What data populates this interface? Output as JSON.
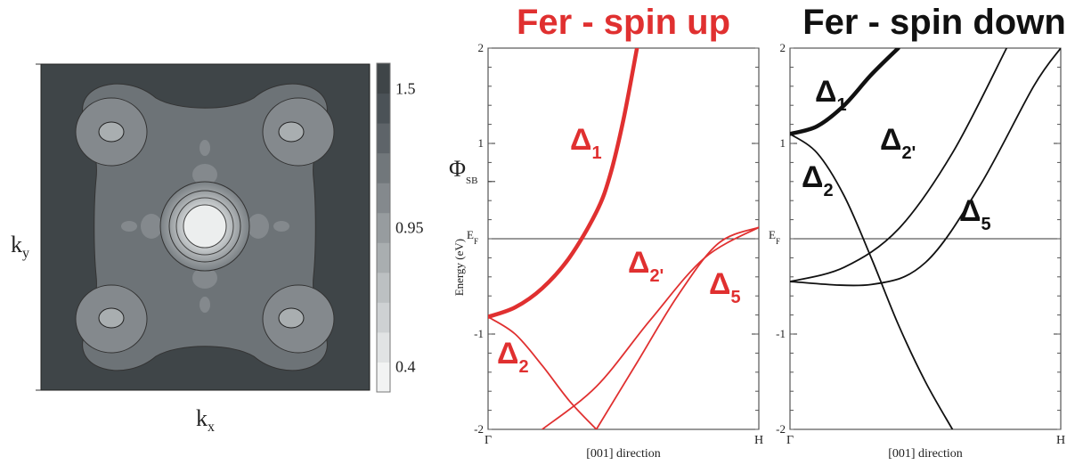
{
  "colors": {
    "spin_up": "#e03030",
    "spin_down": "#111111",
    "map_dark": "#3f4548",
    "axis": "#333333"
  },
  "chart_data": [
    {
      "type": "heatmap",
      "title": "",
      "xlabel": "k",
      "xlabel_sub": "x",
      "ylabel": "k",
      "ylabel_sub": "y",
      "colorbar": {
        "ticks": [
          "1.5",
          "0.95",
          "0.4"
        ],
        "tick_values": [
          1.5,
          0.95,
          0.4
        ],
        "range": [
          0.3,
          1.6
        ],
        "levels": 10,
        "colors": [
          "#f2f3f3",
          "#e1e3e4",
          "#ced1d3",
          "#bcc0c2",
          "#a9aeb0",
          "#979c9f",
          "#84898d",
          "#71777b",
          "#5e6469",
          "#4b5257",
          "#3f4548"
        ]
      },
      "features": [
        {
          "name": "center-peak",
          "x": 0,
          "y": 0
        },
        {
          "name": "corner-minima",
          "points": [
            [
              -0.7,
              0.7
            ],
            [
              0.7,
              0.7
            ],
            [
              -0.7,
              -0.7
            ],
            [
              0.7,
              -0.7
            ]
          ]
        }
      ]
    },
    {
      "type": "line",
      "title": "Fer - spin up",
      "xlabel": "[001] direction",
      "ylabel": "Energy (eV)",
      "x_ticks": [
        "Γ",
        "H"
      ],
      "ylim": [
        -2,
        2
      ],
      "y_ticks": [
        "2",
        "1",
        "-1",
        "-2"
      ],
      "y_tick_values": [
        2,
        1,
        -1,
        -2
      ],
      "reference_lines": [
        {
          "label": "E",
          "sub": "F",
          "y": 0
        }
      ],
      "extra_tick": {
        "label": "Φ",
        "sub": "SB",
        "y": 0.6
      },
      "series": [
        {
          "name": "Δ",
          "sub": "1",
          "bold": true,
          "x": [
            0,
            0.1,
            0.2,
            0.3,
            0.4,
            0.45,
            0.5,
            0.55
          ],
          "y": [
            -0.82,
            -0.72,
            -0.52,
            -0.2,
            0.28,
            0.66,
            1.25,
            2.0
          ]
        },
        {
          "name": "Δ",
          "sub": "2",
          "bold": false,
          "x": [
            0,
            0.1,
            0.2,
            0.3,
            0.4
          ],
          "y": [
            -0.82,
            -1.0,
            -1.33,
            -1.7,
            -2.0
          ]
        },
        {
          "name": "Δ",
          "sub": "2'",
          "bold": false,
          "x": [
            0.2,
            0.4,
            0.6,
            0.8,
            1.0
          ],
          "y": [
            -2.0,
            -1.55,
            -0.85,
            -0.2,
            0.12
          ]
        },
        {
          "name": "Δ",
          "sub": "5",
          "bold": false,
          "x": [
            0.4,
            0.55,
            0.7,
            0.85,
            1.0
          ],
          "y": [
            -2.0,
            -1.3,
            -0.6,
            -0.05,
            0.12
          ]
        }
      ]
    },
    {
      "type": "line",
      "title": "Fer - spin down",
      "xlabel": "[001] direction",
      "ylabel": "",
      "x_ticks": [
        "Γ",
        "H"
      ],
      "ylim": [
        -2,
        2
      ],
      "y_ticks": [
        "2",
        "1",
        "-1",
        "-2"
      ],
      "y_tick_values": [
        2,
        1,
        -1,
        -2
      ],
      "reference_lines": [
        {
          "label": "E",
          "sub": "F",
          "y": 0
        }
      ],
      "series": [
        {
          "name": "Δ",
          "sub": "1",
          "bold": true,
          "x": [
            0,
            0.1,
            0.2,
            0.3,
            0.4
          ],
          "y": [
            1.1,
            1.18,
            1.4,
            1.72,
            2.0
          ]
        },
        {
          "name": "Δ",
          "sub": "2",
          "bold": false,
          "x": [
            0,
            0.1,
            0.2,
            0.3,
            0.4,
            0.5,
            0.6
          ],
          "y": [
            1.1,
            0.9,
            0.45,
            -0.2,
            -0.9,
            -1.5,
            -2.0
          ]
        },
        {
          "name": "Δ",
          "sub": "2'",
          "bold": false,
          "x": [
            0,
            0.2,
            0.4,
            0.6,
            0.8
          ],
          "y": [
            -0.45,
            -0.3,
            0.1,
            0.9,
            2.0
          ]
        },
        {
          "name": "Δ",
          "sub": "5",
          "bold": false,
          "x": [
            0,
            0.3,
            0.5,
            0.7,
            0.9,
            1.0
          ],
          "y": [
            -0.45,
            -0.48,
            -0.25,
            0.55,
            1.6,
            2.0
          ]
        }
      ]
    }
  ]
}
